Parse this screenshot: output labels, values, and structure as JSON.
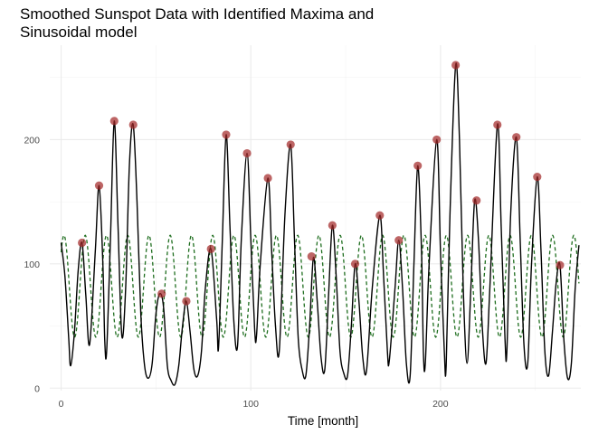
{
  "chart_data": {
    "type": "line",
    "title_lines": [
      "Smoothed Sunspot Data with Identified Maxima and",
      "Sinusoidal model"
    ],
    "xlabel": "Time [month]",
    "ylabel": "",
    "xlim": [
      -6,
      274
    ],
    "ylim": [
      -2,
      276
    ],
    "x_ticks": [
      0,
      100,
      200
    ],
    "y_ticks": [
      0,
      100,
      200
    ],
    "x_minor_ticks": [
      50,
      150,
      250
    ],
    "y_minor_ticks": [
      50,
      150,
      250
    ],
    "grid": true,
    "series": [
      {
        "kind": "smoothed",
        "color": "#000000",
        "style": "solid",
        "points": [
          [
            0,
            117
          ],
          [
            2,
            90
          ],
          [
            4,
            40
          ],
          [
            5,
            18
          ],
          [
            7,
            45
          ],
          [
            9,
            95
          ],
          [
            11,
            117
          ],
          [
            13,
            75
          ],
          [
            15,
            35
          ],
          [
            18,
            110
          ],
          [
            20,
            163
          ],
          [
            22,
            100
          ],
          [
            23,
            38
          ],
          [
            24,
            30
          ],
          [
            26,
            120
          ],
          [
            28,
            215
          ],
          [
            30,
            130
          ],
          [
            32,
            42
          ],
          [
            34,
            80
          ],
          [
            36,
            180
          ],
          [
            38,
            212
          ],
          [
            40,
            150
          ],
          [
            42,
            60
          ],
          [
            44,
            18
          ],
          [
            46,
            8
          ],
          [
            48,
            20
          ],
          [
            50,
            60
          ],
          [
            52,
            76
          ],
          [
            54,
            65
          ],
          [
            56,
            18
          ],
          [
            58,
            6
          ],
          [
            60,
            3
          ],
          [
            62,
            18
          ],
          [
            64,
            50
          ],
          [
            66,
            70
          ],
          [
            68,
            45
          ],
          [
            70,
            15
          ],
          [
            72,
            10
          ],
          [
            74,
            30
          ],
          [
            76,
            80
          ],
          [
            79,
            112
          ],
          [
            82,
            55
          ],
          [
            83,
            33
          ],
          [
            85,
            120
          ],
          [
            87,
            204
          ],
          [
            89,
            130
          ],
          [
            91,
            55
          ],
          [
            93,
            34
          ],
          [
            95,
            120
          ],
          [
            98,
            189
          ],
          [
            100,
            120
          ],
          [
            102,
            48
          ],
          [
            103,
            42
          ],
          [
            105,
            100
          ],
          [
            109,
            169
          ],
          [
            111,
            110
          ],
          [
            113,
            50
          ],
          [
            115,
            30
          ],
          [
            118,
            140
          ],
          [
            121,
            196
          ],
          [
            123,
            120
          ],
          [
            125,
            40
          ],
          [
            127,
            15
          ],
          [
            129,
            10
          ],
          [
            131,
            50
          ],
          [
            133,
            105
          ],
          [
            135,
            70
          ],
          [
            137,
            25
          ],
          [
            139,
            15
          ],
          [
            141,
            75
          ],
          [
            143,
            131
          ],
          [
            145,
            90
          ],
          [
            147,
            30
          ],
          [
            149,
            12
          ],
          [
            151,
            10
          ],
          [
            153,
            50
          ],
          [
            155,
            100
          ],
          [
            157,
            70
          ],
          [
            159,
            25
          ],
          [
            161,
            14
          ],
          [
            164,
            80
          ],
          [
            168,
            139
          ],
          [
            170,
            90
          ],
          [
            172,
            30
          ],
          [
            173,
            22
          ],
          [
            176,
            80
          ],
          [
            178,
            119
          ],
          [
            180,
            80
          ],
          [
            182,
            20
          ],
          [
            184,
            10
          ],
          [
            186,
            100
          ],
          [
            188,
            179
          ],
          [
            190,
            110
          ],
          [
            191,
            28
          ],
          [
            192,
            20
          ],
          [
            194,
            100
          ],
          [
            198,
            200
          ],
          [
            200,
            110
          ],
          [
            202,
            30
          ],
          [
            203,
            18
          ],
          [
            205,
            140
          ],
          [
            208,
            260
          ],
          [
            210,
            200
          ],
          [
            212,
            80
          ],
          [
            214,
            20
          ],
          [
            216,
            80
          ],
          [
            218,
            151
          ],
          [
            220,
            120
          ],
          [
            222,
            50
          ],
          [
            224,
            20
          ],
          [
            226,
            80
          ],
          [
            230,
            212
          ],
          [
            232,
            130
          ],
          [
            234,
            40
          ],
          [
            235,
            30
          ],
          [
            237,
            140
          ],
          [
            240,
            202
          ],
          [
            242,
            120
          ],
          [
            244,
            35
          ],
          [
            246,
            20
          ],
          [
            248,
            100
          ],
          [
            251,
            170
          ],
          [
            253,
            110
          ],
          [
            255,
            30
          ],
          [
            257,
            10
          ],
          [
            259,
            45
          ],
          [
            261,
            85
          ],
          [
            263,
            99
          ],
          [
            265,
            40
          ],
          [
            267,
            8
          ],
          [
            269,
            20
          ],
          [
            271,
            80
          ],
          [
            273,
            115
          ]
        ]
      },
      {
        "kind": "sinusoidal-model",
        "color": "#1f6e1f",
        "style": "dashed",
        "mean": 82,
        "amplitude": 41,
        "period": 11.2,
        "phase_x": 1.5,
        "x_range": [
          0,
          273
        ]
      }
    ],
    "maxima": {
      "color": "#a32a2a",
      "points": [
        [
          11,
          117
        ],
        [
          20,
          163
        ],
        [
          28,
          215
        ],
        [
          38,
          212
        ],
        [
          53,
          76
        ],
        [
          66,
          70
        ],
        [
          79,
          112
        ],
        [
          87,
          204
        ],
        [
          98,
          189
        ],
        [
          109,
          169
        ],
        [
          121,
          196
        ],
        [
          132,
          106
        ],
        [
          143,
          131
        ],
        [
          155,
          100
        ],
        [
          168,
          139
        ],
        [
          178,
          119
        ],
        [
          188,
          179
        ],
        [
          198,
          200
        ],
        [
          208,
          260
        ],
        [
          219,
          151
        ],
        [
          230,
          212
        ],
        [
          240,
          202
        ],
        [
          251,
          170
        ],
        [
          263,
          99
        ]
      ]
    }
  }
}
